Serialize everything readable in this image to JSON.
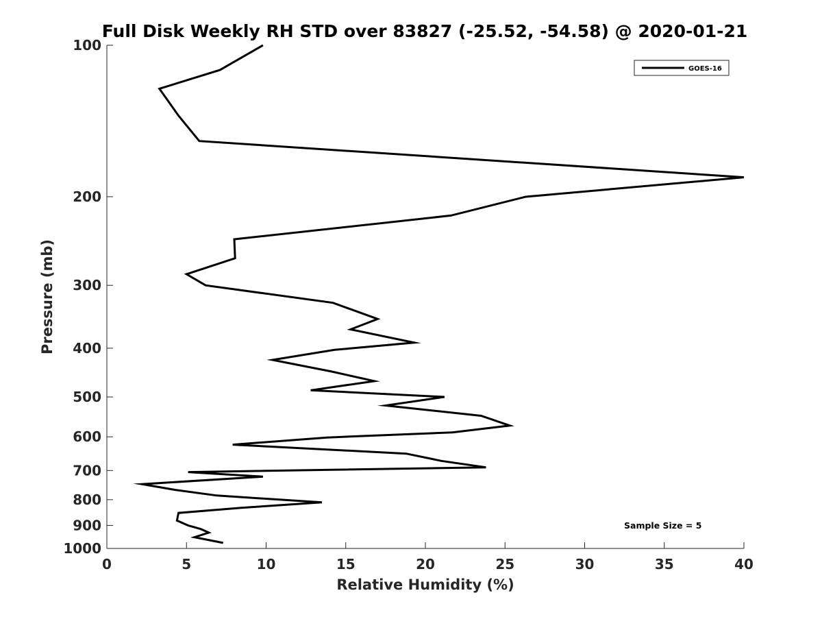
{
  "chart_data": {
    "type": "line",
    "title": "Full Disk Weekly RH STD over 83827 (-25.52, -54.58) @ 2020-01-21",
    "xlabel": "Relative Humidity (%)",
    "ylabel": "Pressure (mb)",
    "xlim": [
      0,
      40
    ],
    "ylim": [
      100,
      1000
    ],
    "y_scale": "log",
    "y_reversed": true,
    "xticks": [
      0,
      5,
      10,
      15,
      20,
      25,
      30,
      35,
      40
    ],
    "yticks": [
      100,
      200,
      300,
      400,
      500,
      600,
      700,
      800,
      900,
      1000
    ],
    "grid": false,
    "legend_position": "top-right",
    "series": [
      {
        "name": "GOES-16",
        "color": "#000000",
        "x": [
          9.8,
          7.1,
          3.3,
          4.5,
          5.8,
          40.0,
          26.3,
          21.6,
          8.0,
          8.05,
          5.0,
          6.2,
          14.2,
          17.0,
          15.3,
          19.3,
          14.3,
          10.4,
          14.1,
          16.8,
          12.8,
          21.2,
          17.5,
          23.5,
          25.3,
          21.7,
          13.8,
          7.9,
          18.8,
          21.0,
          23.8,
          5.1,
          9.8,
          2.2,
          4.3,
          6.9,
          13.5,
          8.5,
          4.5,
          4.4,
          5.1,
          5.9,
          6.4,
          5.5,
          7.3
        ],
        "y": [
          100,
          112,
          122,
          138,
          155,
          183,
          200,
          218,
          243,
          265,
          285,
          300,
          325,
          350,
          367,
          390,
          403,
          422,
          445,
          465,
          485,
          500,
          520,
          545,
          570,
          588,
          602,
          622,
          648,
          670,
          690,
          705,
          720,
          745,
          765,
          785,
          810,
          830,
          850,
          880,
          900,
          915,
          930,
          950,
          975
        ]
      }
    ],
    "annotations": [
      "Sample Size = 5"
    ]
  }
}
